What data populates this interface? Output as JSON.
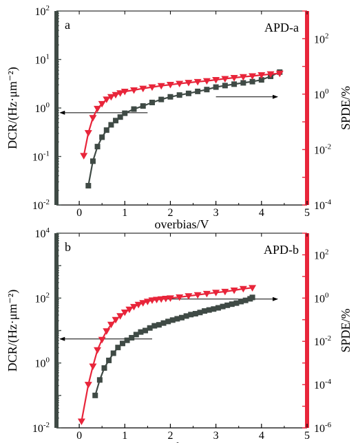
{
  "colors": {
    "dcr": "#3f4a45",
    "spde": "#e8253a",
    "axis_left": "#3f4a45",
    "axis_right": "#e8253a"
  },
  "chart_data": [
    {
      "type": "scatter",
      "panel_label": "a",
      "annotation": "APD-a",
      "xlabel": "overbias/V",
      "ylabel_left": "DCR/(Hz·μm⁻²)",
      "ylabel_right": "SPDE/%",
      "xlim": [
        -0.5,
        5
      ],
      "x_ticks": [
        "0",
        "1",
        "2",
        "3",
        "4",
        "5"
      ],
      "ylim_left": [
        0.01,
        100
      ],
      "y_left_scale": "log",
      "y_left_ticks": [
        {
          "base": "10",
          "exp": "-2"
        },
        {
          "base": "10",
          "exp": "-1"
        },
        {
          "base": "10",
          "exp": "0"
        },
        {
          "base": "10",
          "exp": "1"
        },
        {
          "base": "10",
          "exp": "2"
        }
      ],
      "ylim_right": [
        0.0001,
        1000
      ],
      "y_right_scale": "log",
      "y_right_ticks": [
        {
          "base": "10",
          "exp": "-4"
        },
        {
          "base": "10",
          "exp": "-2"
        },
        {
          "base": "10",
          "exp": "0"
        },
        {
          "base": "10",
          "exp": "2"
        }
      ],
      "series": [
        {
          "axis": "left",
          "marker": "square",
          "x": [
            0.2,
            0.3,
            0.4,
            0.5,
            0.6,
            0.7,
            0.8,
            0.9,
            1.0,
            1.2,
            1.4,
            1.6,
            1.8,
            2.0,
            2.2,
            2.4,
            2.6,
            2.8,
            3.0,
            3.2,
            3.4,
            3.6,
            3.8,
            4.0,
            4.2,
            4.4
          ],
          "y": [
            0.025,
            0.08,
            0.16,
            0.25,
            0.35,
            0.45,
            0.55,
            0.65,
            0.78,
            0.95,
            1.1,
            1.3,
            1.5,
            1.7,
            1.85,
            2.0,
            2.2,
            2.4,
            2.7,
            2.9,
            3.1,
            3.3,
            3.5,
            3.8,
            4.5,
            5.5
          ]
        },
        {
          "axis": "right",
          "marker": "triangle-down",
          "x": [
            0.1,
            0.2,
            0.3,
            0.4,
            0.5,
            0.6,
            0.7,
            0.8,
            0.9,
            1.0,
            1.2,
            1.4,
            1.6,
            1.8,
            2.0,
            2.2,
            2.4,
            2.6,
            2.8,
            3.0,
            3.2,
            3.4,
            3.6,
            3.8,
            4.0,
            4.2,
            4.4
          ],
          "y": [
            0.006,
            0.04,
            0.14,
            0.3,
            0.45,
            0.65,
            0.8,
            0.95,
            1.1,
            1.25,
            1.4,
            1.6,
            1.8,
            2.0,
            2.2,
            2.4,
            2.6,
            2.8,
            3.0,
            3.3,
            3.6,
            3.9,
            4.2,
            4.5,
            4.9,
            5.3,
            5.6
          ]
        }
      ],
      "arrows": [
        {
          "x_from": 1.5,
          "y_from": 0.8,
          "x_to": -0.42,
          "axis": "left"
        },
        {
          "x_from": 3.0,
          "y_from": 0.8,
          "x_to": 4.35,
          "axis": "right"
        }
      ]
    },
    {
      "type": "scatter",
      "panel_label": "b",
      "annotation": "APD-b",
      "xlabel": "overbias/V",
      "ylabel_left": "DCR/(Hz·μm⁻²)",
      "ylabel_right": "SPDE/%",
      "xlim": [
        -0.5,
        5
      ],
      "x_ticks": [
        "0",
        "1",
        "2",
        "3",
        "4",
        "5"
      ],
      "ylim_left": [
        0.01,
        10000
      ],
      "y_left_scale": "log",
      "y_left_ticks": [
        {
          "base": "10",
          "exp": "-2"
        },
        {
          "base": "10",
          "exp": "0"
        },
        {
          "base": "10",
          "exp": "2"
        },
        {
          "base": "10",
          "exp": "4"
        }
      ],
      "ylim_right": [
        1e-06,
        1000
      ],
      "y_right_scale": "log",
      "y_right_ticks": [
        {
          "base": "10",
          "exp": "-6"
        },
        {
          "base": "10",
          "exp": "-4"
        },
        {
          "base": "10",
          "exp": "-2"
        },
        {
          "base": "10",
          "exp": "0"
        },
        {
          "base": "10",
          "exp": "2"
        }
      ],
      "series": [
        {
          "axis": "left",
          "marker": "square",
          "x": [
            0.35,
            0.45,
            0.55,
            0.65,
            0.75,
            0.85,
            0.95,
            1.05,
            1.15,
            1.25,
            1.35,
            1.45,
            1.55,
            1.65,
            1.75,
            1.85,
            1.95,
            2.05,
            2.15,
            2.25,
            2.35,
            2.45,
            2.55,
            2.65,
            2.75,
            2.85,
            2.95,
            3.05,
            3.15,
            3.25,
            3.35,
            3.45,
            3.55,
            3.65,
            3.75,
            3.8
          ],
          "y": [
            0.1,
            0.3,
            0.7,
            1.2,
            2.0,
            3.0,
            4.0,
            5.0,
            6.0,
            7.5,
            9.0,
            10,
            12,
            14,
            15,
            17,
            19,
            21,
            23,
            25,
            28,
            31,
            33,
            36,
            40,
            43,
            46,
            50,
            55,
            60,
            65,
            70,
            78,
            85,
            95,
            105
          ]
        },
        {
          "axis": "right",
          "marker": "triangle-down",
          "x": [
            0.05,
            0.2,
            0.3,
            0.4,
            0.5,
            0.6,
            0.7,
            0.8,
            0.9,
            1.0,
            1.1,
            1.2,
            1.3,
            1.4,
            1.5,
            1.6,
            1.7,
            1.8,
            1.9,
            2.0,
            2.2,
            2.4,
            2.6,
            2.8,
            3.0,
            3.2,
            3.4,
            3.6,
            3.8
          ],
          "y": [
            2e-06,
            0.0001,
            0.0007,
            0.004,
            0.012,
            0.03,
            0.06,
            0.1,
            0.15,
            0.22,
            0.3,
            0.4,
            0.5,
            0.6,
            0.7,
            0.8,
            0.85,
            0.9,
            0.95,
            1.0,
            1.1,
            1.25,
            1.4,
            1.6,
            1.8,
            2.0,
            2.3,
            2.7,
            3.0
          ]
        }
      ],
      "arrows": [
        {
          "x_from": 1.6,
          "y_from": 5.5,
          "x_to": -0.42,
          "axis": "left"
        },
        {
          "x_from": 1.6,
          "y_from": 0.9,
          "x_to": 4.35,
          "axis": "right"
        }
      ]
    }
  ]
}
